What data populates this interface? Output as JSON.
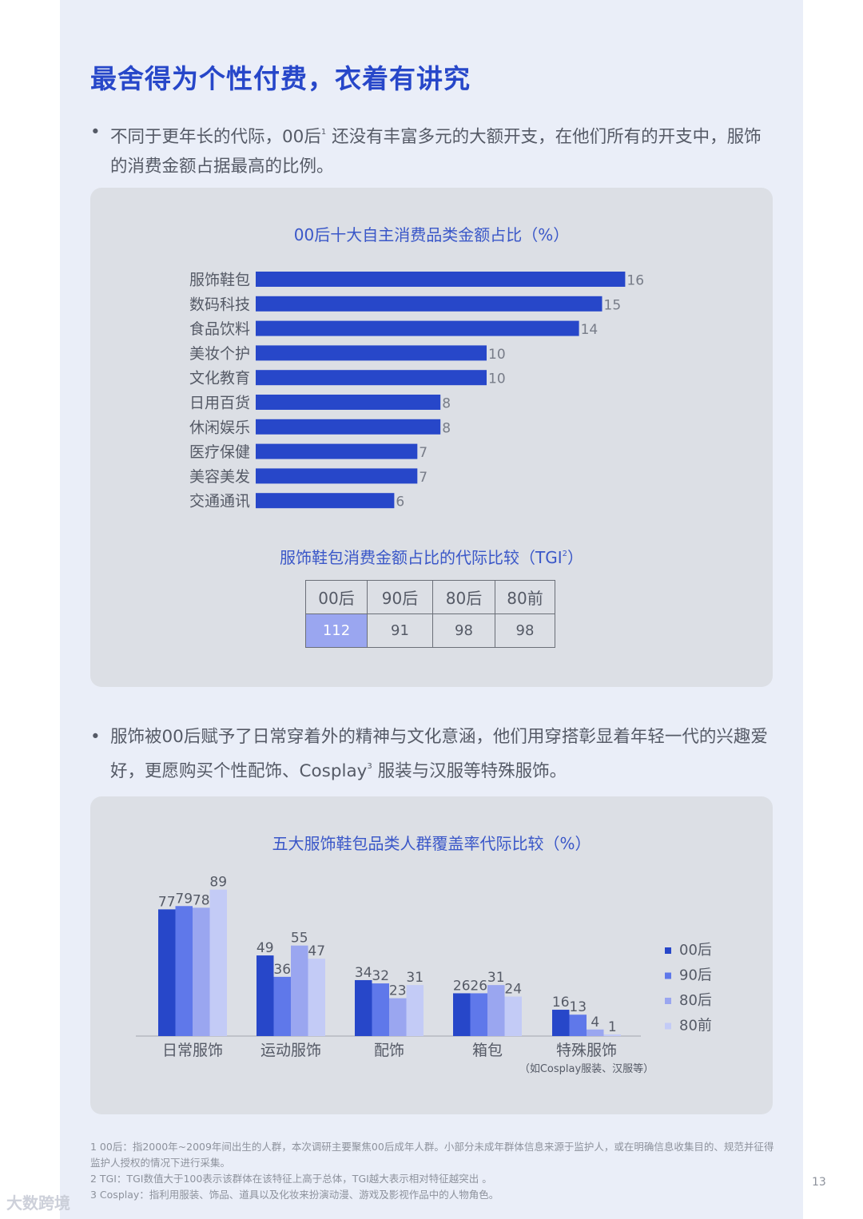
{
  "title": "最舍得为个性付费，衣着有讲究",
  "bullet1": {
    "text_a": "不同于更年长的代际，00后",
    "sup": "1",
    "text_b": " 还没有丰富多元的大额开支，在他们所有的开支中，服饰的消费金额占据最高的比例。"
  },
  "bullet2": {
    "text_a": "服饰被00后赋予了日常穿着外的精神与文化意涵，他们用穿搭彰显着年轻一代的兴趣爱好，更愿购买个性配饰、Cosplay",
    "sup": "3",
    "text_b": " 服装与汉服等特殊服饰。"
  },
  "chart_data": [
    {
      "type": "bar",
      "orientation": "horizontal",
      "title": "00后十大自主消费品类金额占比（%）",
      "categories": [
        "服饰鞋包",
        "数码科技",
        "食品饮料",
        "美妆个护",
        "文化教育",
        "日用百货",
        "休闲娱乐",
        "医疗保健",
        "美容美发",
        "交通通讯"
      ],
      "values": [
        16,
        15,
        14,
        10,
        10,
        8,
        8,
        7,
        7,
        6
      ],
      "labels": [
        "16",
        "15",
        "14",
        "10",
        "10",
        "8",
        "8",
        "7",
        "7",
        "6"
      ],
      "color": "#2747c9"
    },
    {
      "type": "table",
      "title_a": "服饰鞋包消费金额占比的代际比较（TGI",
      "title_sup": "2",
      "title_b": "）",
      "columns": [
        "00后",
        "90后",
        "80后",
        "80前"
      ],
      "values": [
        "112",
        "91",
        "98",
        "98"
      ],
      "highlight_color": "#9aa6f0"
    },
    {
      "type": "bar",
      "title": "五大服饰鞋包品类人群覆盖率代际比较（%）",
      "categories": [
        "日常服饰",
        "运动服饰",
        "配饰",
        "箱包",
        "特殊服饰"
      ],
      "category_note": "（如Cosplay服装、汉服等）",
      "series": [
        {
          "name": "00后",
          "values": [
            77,
            49,
            34,
            26,
            16
          ],
          "color": "#2747c9"
        },
        {
          "name": "90后",
          "values": [
            79,
            36,
            32,
            26,
            13
          ],
          "color": "#5f78ea"
        },
        {
          "name": "80后",
          "values": [
            78,
            55,
            23,
            31,
            4
          ],
          "color": "#9aa6f0"
        },
        {
          "name": "80前",
          "values": [
            89,
            47,
            31,
            24,
            1
          ],
          "color": "#c3cbf6"
        }
      ],
      "ylim": [
        0,
        100
      ],
      "legend": "right"
    }
  ],
  "footnotes": [
    "1 00后：指2000年~2009年间出生的人群，本次调研主要聚焦00后成年人群。小部分未成年群体信息来源于监护人，或在明确信息收集目的、规范并征得监护人授权的情况下进行采集。",
    "2 TGI：TGI数值大于100表示该群体在该特征上高于总体，TGI越大表示相对特征越突出 。",
    "3 Cosplay：指利用服装、饰品、道具以及化妆来扮演动漫、游戏及影视作品中的人物角色。"
  ],
  "page_number": "13",
  "watermark": "大数跨境"
}
